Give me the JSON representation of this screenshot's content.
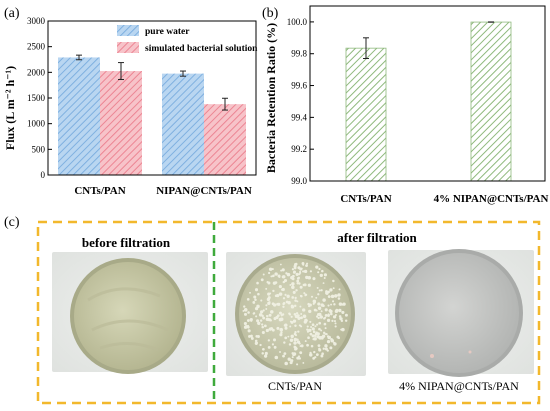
{
  "panel_labels": {
    "a": "(a)",
    "b": "(b)",
    "c": "(c)"
  },
  "colors": {
    "pure_water": "#9fc6ec",
    "bacterial": "#f2a3ad",
    "retention": "#97bf86",
    "frame": "#f2b82c",
    "divider": "#3faa3c",
    "dish_a": "#c7c8a6",
    "dish_b": "#d0d1b4",
    "dish_c": "#c6c8c6"
  },
  "chart_data": [
    {
      "id": "a",
      "type": "bar",
      "title": "",
      "xlabel": "",
      "ylabel": "Flux (L m⁻² h⁻¹)",
      "ylim": [
        0,
        3000
      ],
      "yticks": [
        0,
        500,
        1000,
        1500,
        2000,
        2500,
        3000
      ],
      "categories": [
        "CNTs/PAN",
        "NIPAN@CNTs/PAN"
      ],
      "series": [
        {
          "name": "pure water",
          "values": [
            2290,
            1975
          ],
          "errors": [
            45,
            50
          ],
          "color": "#9fc6ec"
        },
        {
          "name": "simulated bacterial solution",
          "values": [
            2025,
            1380
          ],
          "errors": [
            165,
            115
          ],
          "color": "#f2a3ad"
        }
      ],
      "legend_position": "top-right",
      "grid": false
    },
    {
      "id": "b",
      "type": "bar",
      "title": "",
      "xlabel": "",
      "ylabel": "Bacteria Retention Ratio (%)",
      "ylim": [
        99.0,
        100.1
      ],
      "yticks": [
        99.0,
        99.2,
        99.4,
        99.6,
        99.8,
        100.0
      ],
      "ytick_labels": [
        "99.0",
        "99.2",
        "99.4",
        "99.6",
        "99.8",
        "100.0"
      ],
      "categories": [
        "CNTs/PAN",
        "4% NIPAN@CNTs/PAN"
      ],
      "series": [
        {
          "values": [
            99.835,
            99.999
          ],
          "errors": [
            0.065,
            0.001
          ],
          "color": "#97bf86"
        }
      ],
      "grid": false
    }
  ],
  "panel_c": {
    "before_heading": "before filtration",
    "after_heading": "after filtration",
    "dish_labels": [
      "CNTs/PAN",
      "4% NIPAN@CNTs/PAN"
    ]
  }
}
